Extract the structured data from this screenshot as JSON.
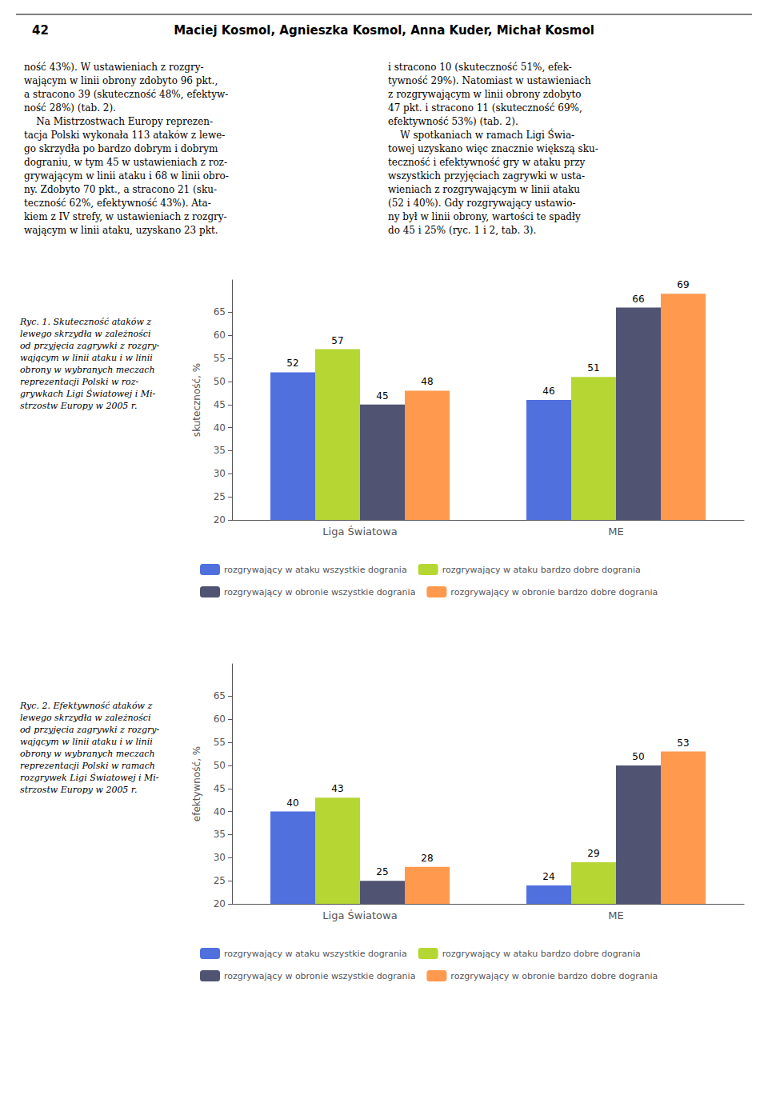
{
  "annotations": [
    "42",
    "Maciej Kosmol, Agnieszka Kosmol, Anna Kuder, Michał Kosmol",
    "ność 43%). W ustawieniach z rozgry-\nwającym w linii obrony zdobyto 96 pkt.,\na stracono 39 (skuteczność 48%, efektyw-\nność 28%) (tab. 2).\n    Na Mistrzostwach Europy reprezen-\ntacja Polski wykonała 113 ataków z lewe-\ngo skrzydła po bardzo dobrym i dobrym\ndograniu, w tym 45 w ustawieniach z roz-\ngrywającym w linii ataku i 68 w linii obro-\nny. Zdobyto 70 pkt., a stracono 21 (sku-\nteczność 62%, efektywność 43%). Ata-\nkiem z IV strefy, w ustawieniach z rozgry-\nwającym w linii ataku, uzyskano 23 pkt.",
    "i stracono 10 (skuteczność 51%, efek-\ntywność 29%). Natomiast w ustawieniach\nz rozgrywającym w linii obrony zdobyto\n47 pkt. i stracono 11 (skuteczność 69%,\nefektywność 53%) (tab. 2).\n    W spotkaniach w ramach Ligi Świa-\ntowej uzyskano więc znacznie większą sku-\nteczność i efektywność gry w ataku przy\nwszystkich przyjęciach zagrywki w usta-\nwieniach z rozgrywającym w linii ataku\n(52 i 40%). Gdy rozgrywający ustawio-\nny był w linii obrony, wartości te spadły\ndo 45 i 25% (ryc. 1 i 2, tab. 3)."
  ],
  "chart_data": [
    {
      "type": "bar",
      "title": "Ryc. 1. Skuteczność ataków z\nlewego skrzydła w zależności\nod przyjęcia zagrywki z rozgry-\nwającym w linii ataku i w linii\nobrony w wybranych meczach\nreprezentacji Polski w roz-\ngrywkach Ligi Światowej i Mi-\nstrzostw Europy w 2005 r.",
      "ylabel": "skuteczność, %",
      "categories": [
        "Liga Światowa",
        "ME"
      ],
      "series": [
        {
          "name": "rozgrywający w ataku wszystkie dogrania",
          "values": [
            52,
            46
          ]
        },
        {
          "name": "rozgrywający w ataku bardzo dobre dogrania",
          "values": [
            57,
            51
          ]
        },
        {
          "name": "rozgrywający w obronie wszystkie dogrania",
          "values": [
            45,
            66
          ]
        },
        {
          "name": "rozgrywający w obronie bardzo dobre dogrania",
          "values": [
            48,
            69
          ]
        }
      ],
      "ylim": [
        20,
        72
      ],
      "yticks": [
        20,
        25,
        30,
        35,
        40,
        45,
        50,
        55,
        60,
        65
      ],
      "grid": false,
      "data_labels": true,
      "legend": "bottom"
    },
    {
      "type": "bar",
      "title": "Ryc. 2. Efektywność ataków z\nlewego skrzydła w zależności\nod przyjęcia zagrywki z rozgry-\nwającym w linii ataku i w linii\nobrony w wybranych meczach\nreprezentacji Polski w ramach\nrozgrywek Ligi Światowej i Mi-\nstrzostw Europy w 2005 r.",
      "ylabel": "efektywność, %",
      "categories": [
        "Liga Światowa",
        "ME"
      ],
      "series": [
        {
          "name": "rozgrywający w ataku wszystkie dogrania",
          "values": [
            40,
            24
          ]
        },
        {
          "name": "rozgrywający w ataku bardzo dobre dogrania",
          "values": [
            43,
            29
          ]
        },
        {
          "name": "rozgrywający w obronie wszystkie dogrania",
          "values": [
            25,
            50
          ]
        },
        {
          "name": "rozgrywający w obronie bardzo dobre dogrania",
          "values": [
            28,
            53
          ]
        }
      ],
      "ylim": [
        20,
        72
      ],
      "yticks": [
        20,
        25,
        30,
        35,
        40,
        45,
        50,
        55,
        60,
        65
      ],
      "grid": false,
      "data_labels": true,
      "legend": "bottom"
    }
  ]
}
